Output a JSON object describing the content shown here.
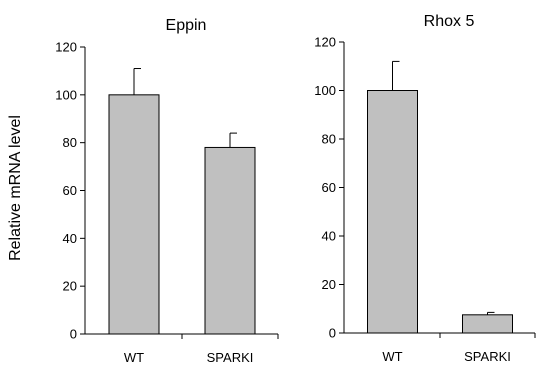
{
  "figure": {
    "ylabel": "Relative mRNA level"
  },
  "chart_data": [
    {
      "type": "bar",
      "title": "Eppin",
      "categories": [
        "WT",
        "SPARKI"
      ],
      "values": [
        100,
        78
      ],
      "errors": [
        11,
        6
      ],
      "ylim": [
        0,
        120
      ],
      "yticks": [
        0,
        20,
        40,
        60,
        80,
        100,
        120
      ],
      "ylabel": "Relative mRNA level",
      "xlabel": "",
      "grid": false,
      "bar_color": "#c0c0c0"
    },
    {
      "type": "bar",
      "title": "Rhox 5",
      "categories": [
        "WT",
        "SPARKI"
      ],
      "values": [
        100,
        7.5
      ],
      "errors": [
        12,
        1
      ],
      "ylim": [
        0,
        120
      ],
      "yticks": [
        0,
        20,
        40,
        60,
        80,
        100,
        120
      ],
      "ylabel": "",
      "xlabel": "",
      "grid": false,
      "bar_color": "#c0c0c0"
    }
  ]
}
